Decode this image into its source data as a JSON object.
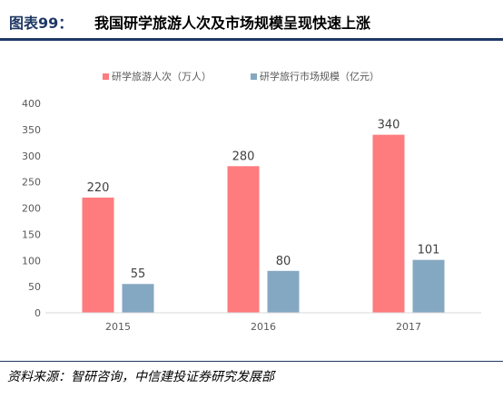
{
  "header": {
    "figure_label": "图表99：",
    "title": "我国研学旅游人次及市场规模呈现快速上涨"
  },
  "footer": {
    "source": "资料来源：智研咨询，中信建投证券研究发展部"
  },
  "chart_data": {
    "type": "bar",
    "categories": [
      "2015",
      "2016",
      "2017"
    ],
    "series": [
      {
        "name": "研学旅游人次（万人）",
        "values": [
          220,
          280,
          340
        ],
        "color": "#fe7b7e"
      },
      {
        "name": "研学旅行市场规模（亿元）",
        "values": [
          55,
          80,
          101
        ],
        "color": "#85a8c2"
      }
    ],
    "ylim": [
      0,
      400
    ],
    "yticks": [
      0,
      50,
      100,
      150,
      200,
      250,
      300,
      350,
      400
    ],
    "grid": false,
    "legend": "top-center"
  }
}
